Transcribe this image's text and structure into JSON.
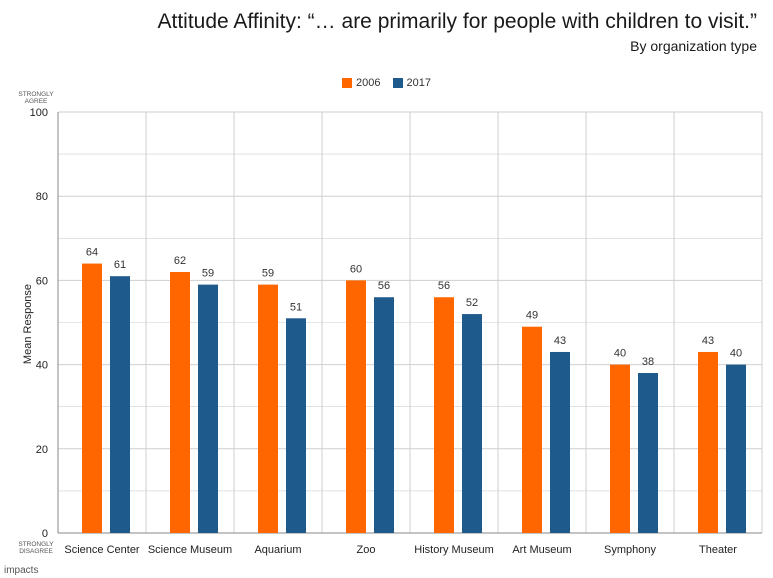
{
  "colors": {
    "s2006": "#ff6600",
    "s2017": "#1f5a8c",
    "grid": "#cfcfcf",
    "axis": "#8a8a8a"
  },
  "chart_data": {
    "type": "bar",
    "title": "Attitude Affinity: “… are primarily for people with children to visit.”",
    "subtitle": "By organization type",
    "ylabel": "Mean Response",
    "ylim": [
      0,
      100
    ],
    "yticks": [
      0,
      20,
      40,
      60,
      80,
      100
    ],
    "top_anchor": "STRONGLY AGREE",
    "bottom_anchor": "STRONGLY DISAGREE",
    "categories": [
      "Science Center",
      "Science Museum",
      "Aquarium",
      "Zoo",
      "History Museum",
      "Art Museum",
      "Symphony",
      "Theater"
    ],
    "series": [
      {
        "name": "2006",
        "values": [
          64,
          62,
          59,
          60,
          56,
          49,
          40,
          43
        ]
      },
      {
        "name": "2017",
        "values": [
          61,
          59,
          51,
          56,
          52,
          43,
          38,
          40
        ]
      }
    ],
    "grid": true,
    "legend": "top-center"
  },
  "footer": {
    "logo_text": "impacts"
  }
}
